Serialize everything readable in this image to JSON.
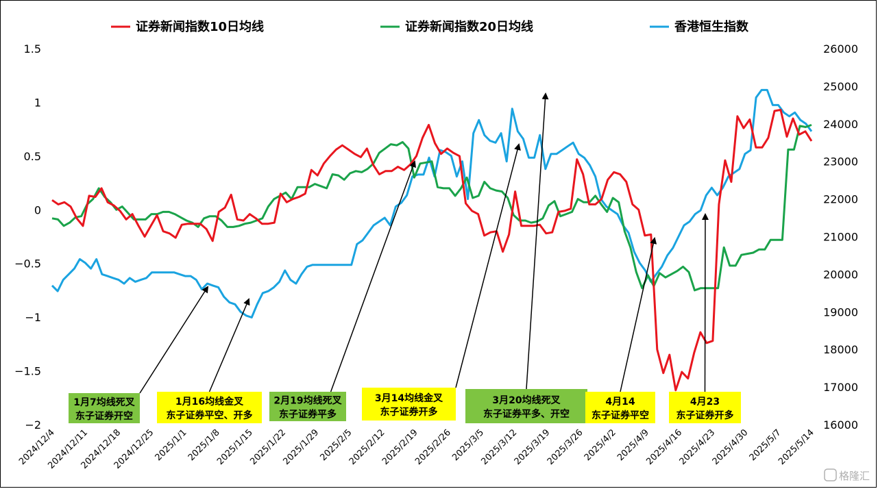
{
  "chart_data": {
    "type": "line",
    "legend": [
      "证券新闻指数10日均线",
      "证券新闻指数20日均线",
      "香港恒生指数"
    ],
    "legend_position": "top",
    "colors": {
      "ma10": "#e8161e",
      "ma20": "#1aa34a",
      "hsi": "#1aa3e0",
      "ann_green": "#7ec441",
      "ann_yellow": "#ffff00"
    },
    "y_left": {
      "range": [
        -2,
        1.5
      ],
      "ticks": [
        "1.5",
        "1",
        "0.5",
        "0",
        "−0.5",
        "−1",
        "−1.5",
        "−2"
      ]
    },
    "y_right": {
      "range": [
        16000,
        26000
      ],
      "ticks": [
        "26000",
        "25000",
        "24000",
        "23000",
        "22000",
        "21000",
        "20000",
        "19000",
        "18000",
        "17000",
        "16000"
      ]
    },
    "x_labels": [
      "2024/12/4",
      "2024/12/11",
      "2024/12/18",
      "2024/12/25",
      "2025/1/1",
      "2025/1/8",
      "2025/1/15",
      "2025/1/22",
      "2025/1/29",
      "2025/2/5",
      "2025/2/12",
      "2025/2/19",
      "2025/2/26",
      "2025/3/5",
      "2025/3/12",
      "2025/3/19",
      "2025/3/26",
      "2025/4/2",
      "2025/4/9",
      "2025/4/16",
      "2025/4/23",
      "2025/4/30",
      "2025/5/7",
      "2025/5/14"
    ],
    "grid": false,
    "series": [
      {
        "name": "证券新闻指数10日均线",
        "key": "ma10",
        "axis": "left",
        "values": [
          0.09,
          0.05,
          0.07,
          0.03,
          -0.08,
          -0.15,
          0.13,
          0.12,
          0.2,
          0.07,
          0.04,
          -0.01,
          -0.09,
          -0.04,
          -0.15,
          -0.25,
          -0.15,
          -0.05,
          -0.2,
          -0.22,
          -0.26,
          -0.14,
          -0.13,
          -0.13,
          -0.13,
          -0.18,
          -0.29,
          -0.02,
          0.02,
          0.14,
          -0.09,
          -0.1,
          -0.04,
          -0.08,
          -0.13,
          -0.13,
          -0.12,
          0.15,
          0.07,
          0.1,
          0.12,
          0.15,
          0.37,
          0.32,
          0.43,
          0.5,
          0.56,
          0.6,
          0.56,
          0.52,
          0.49,
          0.57,
          0.42,
          0.33,
          0.36,
          0.36,
          0.4,
          0.37,
          0.42,
          0.5,
          0.67,
          0.79,
          0.62,
          0.52,
          0.57,
          0.53,
          0.5,
          0.06,
          -0.01,
          -0.04,
          -0.24,
          -0.21,
          -0.2,
          -0.39,
          -0.23,
          0.17,
          -0.15,
          -0.15,
          -0.15,
          -0.14,
          -0.22,
          -0.21,
          -0.02,
          -0.01,
          0.01,
          0.47,
          0.33,
          0.05,
          0.05,
          0.1,
          0.28,
          0.35,
          0.33,
          0.26,
          0.05,
          0.0,
          -0.24,
          -0.23,
          -1.3,
          -1.52,
          -1.35,
          -1.68,
          -1.51,
          -1.57,
          -1.33,
          -1.14,
          -1.24,
          -1.22,
          0.05,
          0.46,
          0.26,
          0.87,
          0.76,
          0.84,
          0.58,
          0.58,
          0.67,
          0.92,
          0.93,
          0.68,
          0.85,
          0.7,
          0.73,
          0.64
        ]
      },
      {
        "name": "证券新闻指数20日均线",
        "key": "ma20",
        "axis": "left",
        "values": [
          -0.08,
          -0.09,
          -0.15,
          -0.12,
          -0.07,
          -0.06,
          0.05,
          0.1,
          0.2,
          0.12,
          0.07,
          0.0,
          0.03,
          -0.03,
          -0.09,
          -0.09,
          -0.09,
          -0.04,
          -0.04,
          -0.02,
          -0.02,
          -0.04,
          -0.07,
          -0.1,
          -0.12,
          -0.16,
          -0.08,
          -0.06,
          -0.06,
          -0.1,
          -0.16,
          -0.16,
          -0.15,
          -0.13,
          -0.12,
          -0.1,
          -0.08,
          0.03,
          0.1,
          0.13,
          0.16,
          0.1,
          0.21,
          0.21,
          0.21,
          0.24,
          0.22,
          0.2,
          0.33,
          0.32,
          0.28,
          0.34,
          0.36,
          0.35,
          0.38,
          0.43,
          0.53,
          0.57,
          0.61,
          0.6,
          0.63,
          0.57,
          0.3,
          0.43,
          0.44,
          0.45,
          0.21,
          0.2,
          0.2,
          0.13,
          0.2,
          0.3,
          0.11,
          0.13,
          0.26,
          0.2,
          0.18,
          0.17,
          0.11,
          -0.05,
          -0.1,
          -0.1,
          -0.12,
          -0.11,
          -0.08,
          0.04,
          0.08,
          -0.06,
          -0.04,
          -0.02,
          0.1,
          0.07,
          0.07,
          0.13,
          0.05,
          -0.02,
          0.11,
          0.07,
          -0.2,
          -0.35,
          -0.58,
          -0.73,
          -0.61,
          -0.71,
          -0.59,
          -0.63,
          -0.6,
          -0.57,
          -0.53,
          -0.58,
          -0.75,
          -0.73,
          -0.73,
          -0.73,
          -0.73,
          -0.35,
          -0.52,
          -0.52,
          -0.42,
          -0.41,
          -0.4,
          -0.37,
          -0.37,
          -0.28,
          -0.28,
          -0.28,
          0.56,
          0.56,
          0.78,
          0.77,
          0.79
        ]
      },
      {
        "name": "香港恒生指数",
        "key": "hsi",
        "axis": "right",
        "values": [
          19700,
          19550,
          19850,
          20000,
          20150,
          20400,
          20300,
          20150,
          20400,
          20000,
          19950,
          19900,
          19850,
          19750,
          19900,
          19800,
          19850,
          19900,
          20050,
          20050,
          20050,
          20050,
          20050,
          20000,
          19950,
          19950,
          19850,
          19600,
          19750,
          19700,
          19650,
          19400,
          19250,
          19200,
          19000,
          18900,
          18850,
          19200,
          19500,
          19550,
          19650,
          19800,
          20100,
          19850,
          19750,
          20000,
          20200,
          20250,
          20250,
          20250,
          20250,
          20250,
          20250,
          20250,
          20250,
          20800,
          20900,
          21100,
          21300,
          21400,
          21500,
          21300,
          21800,
          21900,
          22100,
          22600,
          22650,
          22650,
          23100,
          22600,
          23300,
          23250,
          23150,
          22600,
          23000,
          22000,
          23750,
          24100,
          23700,
          23550,
          23500,
          23750,
          23000,
          24400,
          23800,
          23600,
          23100,
          23100,
          23700,
          22800,
          23200,
          23200,
          23300,
          23400,
          23500,
          23200,
          23100,
          22900,
          22600,
          22000,
          21800,
          21700,
          21600,
          21300,
          21100,
          20600,
          20300,
          20100,
          19800,
          20000,
          20200,
          20500,
          20700,
          21000,
          21300,
          21400,
          21600,
          21700,
          22100,
          22300,
          22100,
          22300,
          22600,
          22700,
          22800,
          23200,
          23300,
          24700,
          24900,
          24900,
          24500,
          24500,
          24300,
          24200,
          24300,
          24100,
          24000,
          23800
        ]
      }
    ],
    "annotations": [
      {
        "line1": "1月7均线死叉",
        "line2": "东子证券开空",
        "color": "green"
      },
      {
        "line1": "1月16均线金叉",
        "line2": "东子证券平空、开多",
        "color": "yellow"
      },
      {
        "line1": "2月19均线死叉",
        "line2": "东子证券平多",
        "color": "green"
      },
      {
        "line1": "3月14均线金叉",
        "line2": "东子证券开多",
        "color": "yellow"
      },
      {
        "line1": "3月20均线死叉",
        "line2": "东子证券平多、开空",
        "color": "green"
      },
      {
        "line1": "4月14",
        "line2": "东子证券平空",
        "color": "yellow"
      },
      {
        "line1": "4月23",
        "line2": "东子证券开多",
        "color": "yellow"
      }
    ]
  },
  "watermark": "格隆汇"
}
